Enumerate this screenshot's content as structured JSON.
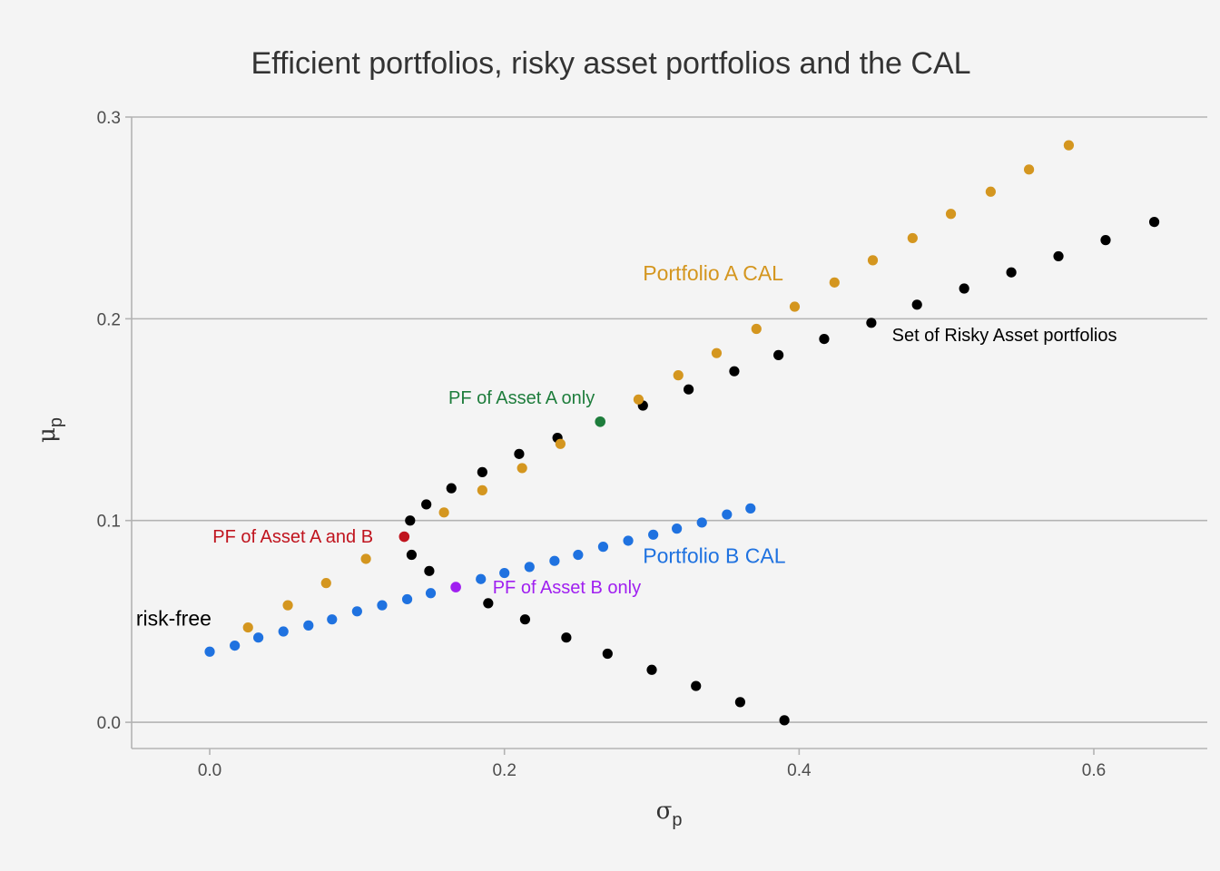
{
  "chart_data": {
    "type": "scatter",
    "title": "Efficient portfolios, risky asset portfolios and the CAL",
    "xlabel": {
      "symbol": "σ",
      "subscript": "p"
    },
    "ylabel": {
      "symbol": "μ",
      "subscript": "p"
    },
    "xlim": [
      -0.053,
      0.677
    ],
    "ylim": [
      -0.013,
      0.3
    ],
    "x_ticks": [
      {
        "value": 0.0,
        "label": "0.0"
      },
      {
        "value": 0.2,
        "label": "0.2"
      },
      {
        "value": 0.4,
        "label": "0.4"
      },
      {
        "value": 0.6,
        "label": "0.6"
      }
    ],
    "y_ticks": [
      {
        "value": 0.0,
        "label": "0.0"
      },
      {
        "value": 0.1,
        "label": "0.1"
      },
      {
        "value": 0.2,
        "label": "0.2"
      },
      {
        "value": 0.3,
        "label": "0.3"
      }
    ],
    "grid": "horizontal",
    "legend": "none",
    "series": [
      {
        "color": "#000000",
        "points": [
          [
            0.39,
            0.001
          ],
          [
            0.36,
            0.01
          ],
          [
            0.33,
            0.018
          ],
          [
            0.3,
            0.026
          ],
          [
            0.27,
            0.034
          ],
          [
            0.242,
            0.042
          ],
          [
            0.214,
            0.051
          ],
          [
            0.189,
            0.059
          ],
          [
            0.149,
            0.075
          ],
          [
            0.137,
            0.083
          ],
          [
            0.136,
            0.1
          ],
          [
            0.147,
            0.108
          ],
          [
            0.164,
            0.116
          ],
          [
            0.185,
            0.124
          ],
          [
            0.21,
            0.133
          ],
          [
            0.236,
            0.141
          ],
          [
            0.294,
            0.157
          ],
          [
            0.325,
            0.165
          ],
          [
            0.356,
            0.174
          ],
          [
            0.386,
            0.182
          ],
          [
            0.417,
            0.19
          ],
          [
            0.449,
            0.198
          ],
          [
            0.48,
            0.207
          ],
          [
            0.512,
            0.215
          ],
          [
            0.544,
            0.223
          ],
          [
            0.576,
            0.231
          ],
          [
            0.608,
            0.239
          ],
          [
            0.641,
            0.248
          ]
        ]
      },
      {
        "color": "#d4961f",
        "points": [
          [
            0.026,
            0.047
          ],
          [
            0.053,
            0.058
          ],
          [
            0.079,
            0.069
          ],
          [
            0.106,
            0.081
          ],
          [
            0.159,
            0.104
          ],
          [
            0.185,
            0.115
          ],
          [
            0.212,
            0.126
          ],
          [
            0.238,
            0.138
          ],
          [
            0.291,
            0.16
          ],
          [
            0.318,
            0.172
          ],
          [
            0.344,
            0.183
          ],
          [
            0.371,
            0.195
          ],
          [
            0.397,
            0.206
          ],
          [
            0.424,
            0.218
          ],
          [
            0.45,
            0.229
          ],
          [
            0.477,
            0.24
          ],
          [
            0.503,
            0.252
          ],
          [
            0.53,
            0.263
          ],
          [
            0.556,
            0.274
          ],
          [
            0.583,
            0.286
          ]
        ]
      },
      {
        "color": "#1f72e0",
        "points": [
          [
            0.0,
            0.035
          ],
          [
            0.017,
            0.038
          ],
          [
            0.033,
            0.042
          ],
          [
            0.05,
            0.045
          ],
          [
            0.067,
            0.048
          ],
          [
            0.083,
            0.051
          ],
          [
            0.1,
            0.055
          ],
          [
            0.117,
            0.058
          ],
          [
            0.134,
            0.061
          ],
          [
            0.15,
            0.064
          ],
          [
            0.184,
            0.071
          ],
          [
            0.2,
            0.074
          ],
          [
            0.217,
            0.077
          ],
          [
            0.234,
            0.08
          ],
          [
            0.25,
            0.083
          ],
          [
            0.267,
            0.087
          ],
          [
            0.284,
            0.09
          ],
          [
            0.301,
            0.093
          ],
          [
            0.317,
            0.096
          ],
          [
            0.334,
            0.099
          ],
          [
            0.351,
            0.103
          ],
          [
            0.367,
            0.106
          ]
        ]
      }
    ],
    "highlight_points": [
      {
        "x": 0.265,
        "y": 0.149,
        "color": "#1e7d3c"
      },
      {
        "x": 0.132,
        "y": 0.092,
        "color": "#c0141e"
      },
      {
        "x": 0.167,
        "y": 0.067,
        "color": "#a020f0"
      }
    ],
    "annotations": [
      {
        "text": "Portfolio A CAL",
        "x": 0.294,
        "y": 0.219,
        "color": "#d4961f",
        "size": "large"
      },
      {
        "text": "Set of Risky Asset portfolios",
        "x": 0.463,
        "y": 0.189,
        "color": "#000000",
        "size": "small"
      },
      {
        "text": "PF of Asset A only",
        "x": 0.162,
        "y": 0.158,
        "color": "#1e7d3c",
        "size": "small"
      },
      {
        "text": "PF of Asset A and B",
        "x": 0.002,
        "y": 0.089,
        "color": "#c0141e",
        "size": "small"
      },
      {
        "text": "Portfolio B CAL",
        "x": 0.294,
        "y": 0.079,
        "color": "#1f72e0",
        "size": "large"
      },
      {
        "text": "PF of Asset B only",
        "x": 0.192,
        "y": 0.064,
        "color": "#a020f0",
        "size": "small"
      },
      {
        "text": "risk-free",
        "x": -0.05,
        "y": 0.048,
        "color": "#000000",
        "size": "large"
      }
    ]
  }
}
